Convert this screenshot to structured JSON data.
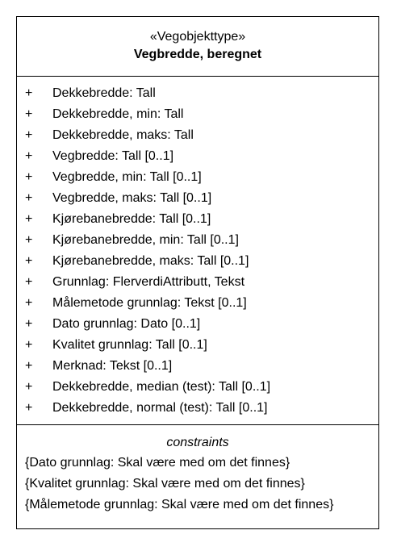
{
  "class": {
    "stereotype": "«Vegobjekttype»",
    "name": "Vegbredde, beregnet"
  },
  "attributes": [
    {
      "visibility": "+",
      "text": "Dekkebredde: Tall"
    },
    {
      "visibility": "+",
      "text": "Dekkebredde, min: Tall"
    },
    {
      "visibility": "+",
      "text": "Dekkebredde, maks: Tall"
    },
    {
      "visibility": "+",
      "text": "Vegbredde: Tall [0..1]"
    },
    {
      "visibility": "+",
      "text": "Vegbredde, min: Tall [0..1]"
    },
    {
      "visibility": "+",
      "text": "Vegbredde, maks: Tall [0..1]"
    },
    {
      "visibility": "+",
      "text": "Kjørebanebredde: Tall [0..1]"
    },
    {
      "visibility": "+",
      "text": "Kjørebanebredde, min: Tall [0..1]"
    },
    {
      "visibility": "+",
      "text": "Kjørebanebredde, maks: Tall [0..1]"
    },
    {
      "visibility": "+",
      "text": "Grunnlag: FlerverdiAttributt, Tekst"
    },
    {
      "visibility": "+",
      "text": "Målemetode grunnlag: Tekst [0..1]"
    },
    {
      "visibility": "+",
      "text": "Dato grunnlag: Dato [0..1]"
    },
    {
      "visibility": "+",
      "text": "Kvalitet grunnlag: Tall [0..1]"
    },
    {
      "visibility": "+",
      "text": "Merknad: Tekst [0..1]"
    },
    {
      "visibility": "+",
      "text": "Dekkebredde, median (test): Tall [0..1]"
    },
    {
      "visibility": "+",
      "text": "Dekkebredde, normal (test): Tall [0..1]"
    }
  ],
  "constraints": {
    "title": "constraints",
    "items": [
      "{Dato grunnlag: Skal være med om det finnes}",
      "{Kvalitet grunnlag: Skal være med om det finnes}",
      "{Målemetode grunnlag: Skal være med om det finnes}"
    ]
  }
}
